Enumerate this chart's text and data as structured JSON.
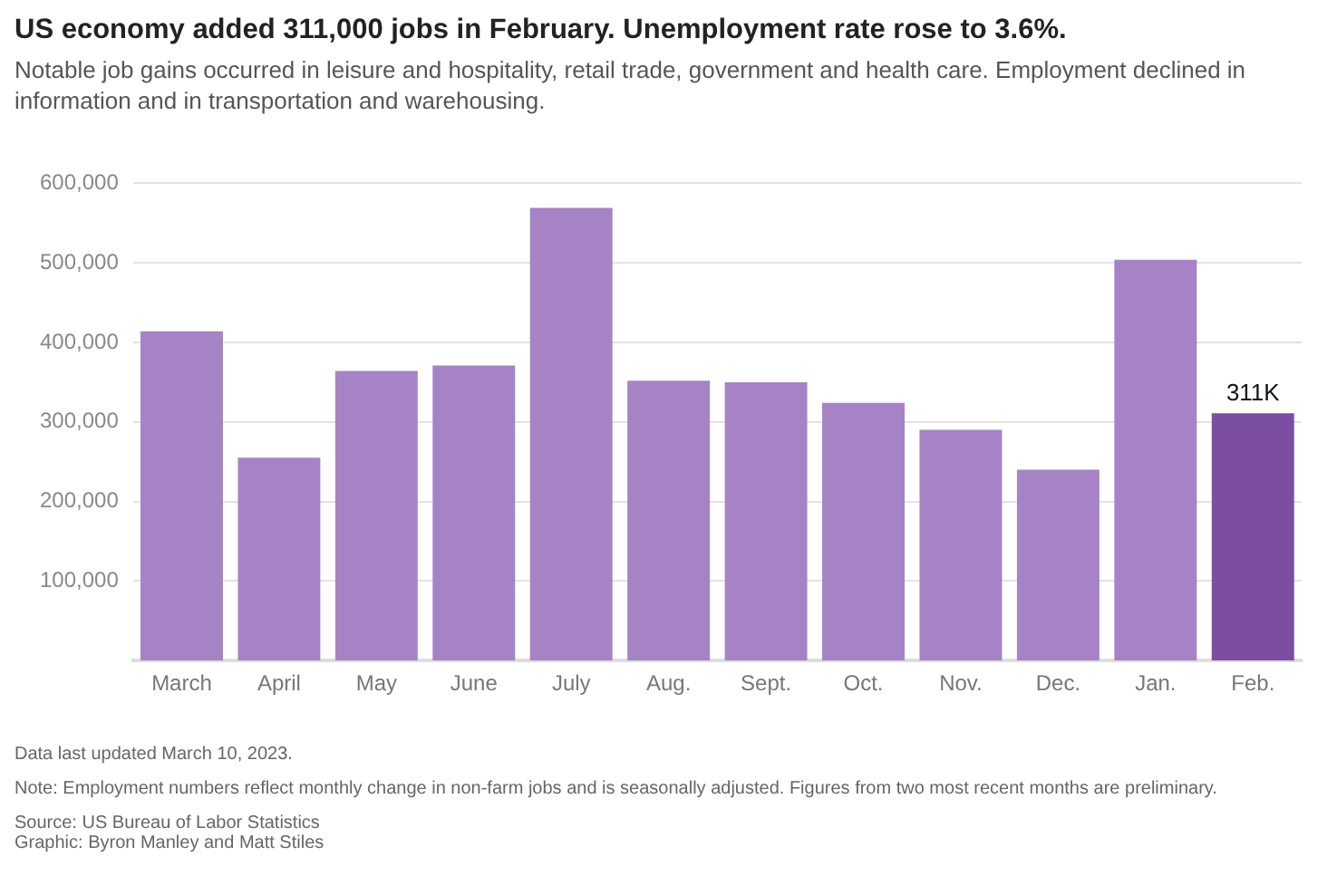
{
  "chart_data": {
    "type": "bar",
    "title": "US economy added 311,000 jobs in February. Unemployment rate rose to 3.6%.",
    "subtitle": "Notable job gains occurred in leisure and hospitality, retail trade, government and health care. Employment declined in information and in transportation and warehousing.",
    "categories": [
      "March",
      "April",
      "May",
      "June",
      "July",
      "Aug.",
      "Sept.",
      "Oct.",
      "Nov.",
      "Dec.",
      "Jan.",
      "Feb."
    ],
    "values": [
      414000,
      255000,
      364000,
      371000,
      569000,
      352000,
      350000,
      324000,
      290000,
      240000,
      504000,
      311000
    ],
    "colors": [
      "#a683c4",
      "#a683c4",
      "#a683c4",
      "#a683c4",
      "#a683c4",
      "#a683c4",
      "#a683c4",
      "#a683c4",
      "#a683c4",
      "#a683c4",
      "#a683c4",
      "#7b4ea3"
    ],
    "value_labels": [
      null,
      null,
      null,
      null,
      null,
      null,
      null,
      null,
      null,
      null,
      null,
      "311K"
    ],
    "ylim": [
      0,
      600000
    ],
    "yticks": [
      {
        "value": 100000,
        "label": "100,000"
      },
      {
        "value": 200000,
        "label": "200,000"
      },
      {
        "value": 300000,
        "label": "300,000"
      },
      {
        "value": 400000,
        "label": "400,000"
      },
      {
        "value": 500000,
        "label": "500,000"
      },
      {
        "value": 600000,
        "label": "600,000"
      }
    ],
    "grid": "y",
    "legend": false,
    "annotations": [
      "Data last updated March 10, 2023.",
      "Note: Employment numbers reflect monthly change in non-farm jobs and is seasonally adjusted. Figures from two most recent months are preliminary.",
      "Source: US Bureau of Labor Statistics",
      "Graphic: Byron Manley and Matt Stiles"
    ]
  }
}
